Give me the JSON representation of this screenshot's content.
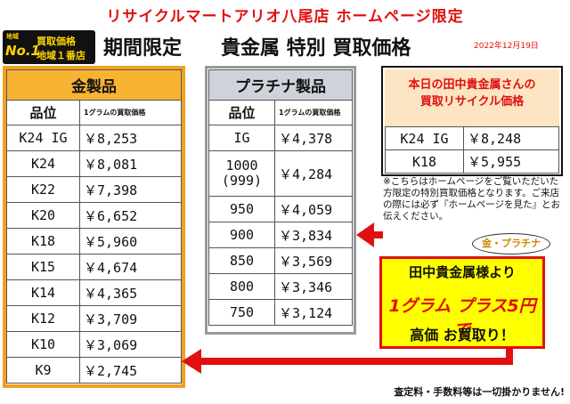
{
  "banner": "リサイクルマートアリオ八尾店 ホームページ限定",
  "badge": {
    "area": "地域",
    "no1": "No.1",
    "line1": "買取価格",
    "line2": "地域１番店"
  },
  "heading": "期間限定　　貴金属 特別 買取価格",
  "date": "2022年12月19日",
  "gold": {
    "title": "金製品",
    "col1": "品位",
    "col2": "1グラムの買取価格",
    "rows": [
      {
        "k": "K24 IG",
        "v": "￥8,253"
      },
      {
        "k": "K24",
        "v": "￥8,081"
      },
      {
        "k": "K22",
        "v": "￥7,398"
      },
      {
        "k": "K20",
        "v": "￥6,652"
      },
      {
        "k": "K18",
        "v": "￥5,960"
      },
      {
        "k": "K15",
        "v": "￥4,674"
      },
      {
        "k": "K14",
        "v": "￥4,365"
      },
      {
        "k": "K12",
        "v": "￥3,709"
      },
      {
        "k": "K10",
        "v": "￥3,069"
      },
      {
        "k": "K9",
        "v": "￥2,745"
      }
    ]
  },
  "platinum": {
    "title": "プラチナ製品",
    "col1": "品位",
    "col2": "1グラムの買取価格",
    "rows": [
      {
        "k": "IG",
        "v": "￥4,378"
      },
      {
        "k": "1000\n(999)",
        "v": "￥4,284"
      },
      {
        "k": "950",
        "v": "￥4,059"
      },
      {
        "k": "900",
        "v": "￥3,834"
      },
      {
        "k": "850",
        "v": "￥3,569"
      },
      {
        "k": "800",
        "v": "￥3,346"
      },
      {
        "k": "750",
        "v": "￥3,124"
      }
    ]
  },
  "tanaka": {
    "title_line1": "本日の田中貴金属さんの",
    "title_line2": "買取リサイクル価格",
    "rows": [
      {
        "k": "K24 IG",
        "v": "￥8,248"
      },
      {
        "k": "K18",
        "v": "￥5,955"
      }
    ]
  },
  "note": "※こちらはホームページをご覧いただいた方限定の特別買取価格となります。ご来店の際には必ず『ホームページを見た』とお伝えください。",
  "bubble": "金・プラチナ",
  "promo": {
    "line1": "田中貴金属様より",
    "line2": "1グラム プラス5円で",
    "line3": "高価 お買取り！"
  },
  "footer": "査定料・手数料等は一切掛かりません!",
  "colors": {
    "red": "#e01010",
    "gold_header": "#f9b333",
    "gold_border": "#f2a020",
    "platinum_header": "#cfd2da",
    "tanaka_header": "#fde4c2",
    "promo_bg": "#ffff00"
  }
}
